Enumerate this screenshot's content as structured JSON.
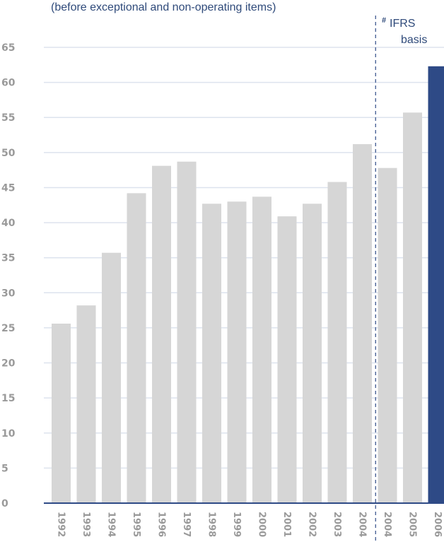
{
  "chart_data": {
    "type": "bar",
    "title": "",
    "subtitle": "(before exceptional and non-operating items)",
    "xlabel": "",
    "ylabel": "",
    "ylim": [
      0,
      65
    ],
    "yticks": [
      0,
      5,
      10,
      15,
      20,
      25,
      30,
      35,
      40,
      45,
      50,
      55,
      60,
      65
    ],
    "grid": true,
    "categories": [
      "1992",
      "1993",
      "1994",
      "1995",
      "1996",
      "1997",
      "1998",
      "1999",
      "2000",
      "2001",
      "2002",
      "2003",
      "2004",
      "2004",
      "2005",
      "2006"
    ],
    "values": [
      25.6,
      28.2,
      35.7,
      44.2,
      48.1,
      48.7,
      42.7,
      43.0,
      43.7,
      40.9,
      42.7,
      45.8,
      51.2,
      47.8,
      55.7,
      62.3
    ],
    "highlight_index": 15,
    "colors": {
      "bar": "#d6d6d6",
      "highlight": "#2e4a86",
      "grid": "#dde3ee",
      "axis": "#2e4a86",
      "divider": "#2e4a86"
    },
    "annotation": {
      "mark": "#",
      "line1": "IFRS",
      "line2": "basis",
      "split_after_index": 12
    }
  }
}
